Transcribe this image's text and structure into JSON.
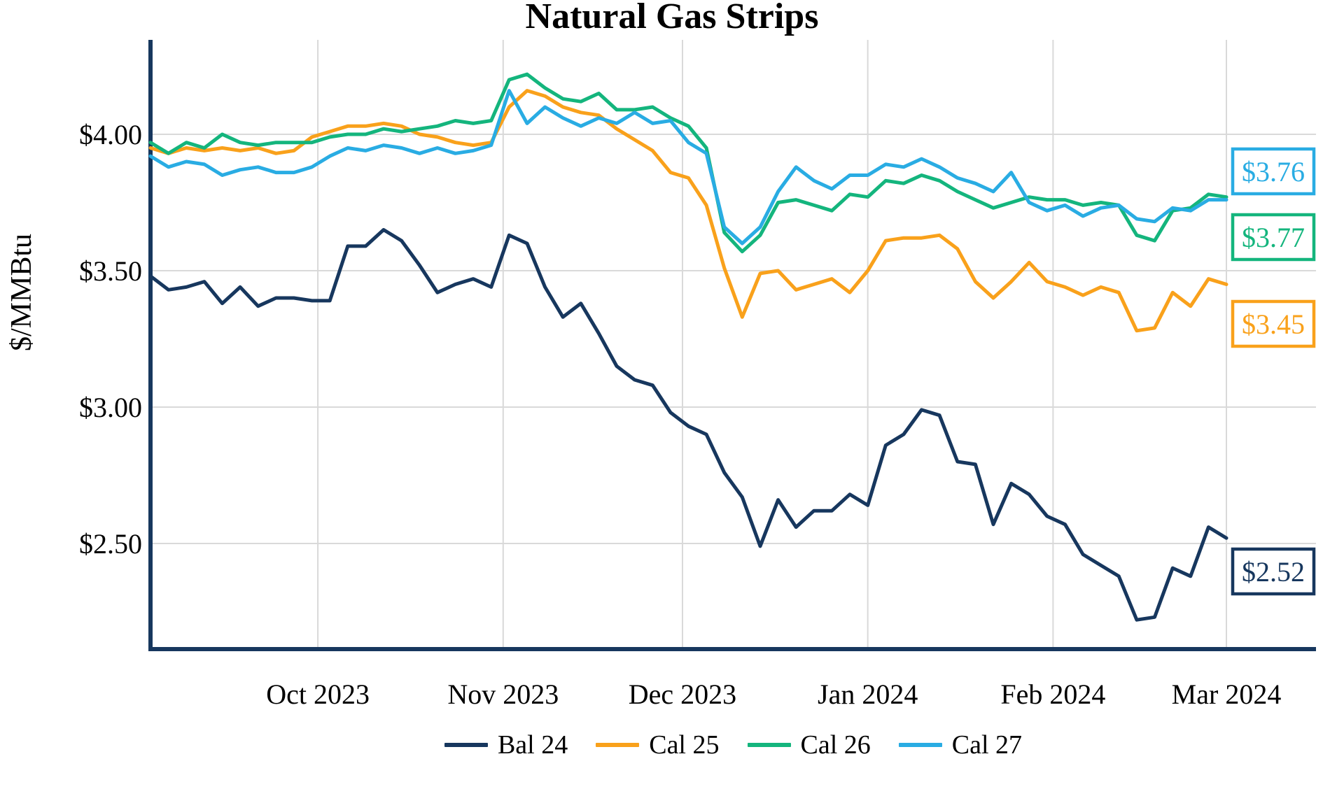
{
  "chart_data": {
    "type": "line",
    "title": "Natural Gas Strips",
    "ylabel": "$/MMBtu",
    "grid": true,
    "legend_position": "bottom",
    "x_unit": "date",
    "x_start": "2023-09-03",
    "x_end": "2024-03-01",
    "x_tick_labels": [
      "Oct 2023",
      "Nov 2023",
      "Dec 2023",
      "Jan 2024",
      "Feb 2024",
      "Mar 2024"
    ],
    "x_tick_day_offsets": [
      28,
      59,
      89,
      120,
      151,
      180
    ],
    "y_tick_labels": [
      "$4.00",
      "$3.50",
      "$3.00",
      "$2.50"
    ],
    "y_tick_values": [
      4.0,
      3.5,
      3.0,
      2.5
    ],
    "ylim": [
      2.11,
      4.35
    ],
    "day_offsets": [
      0,
      3,
      6,
      9,
      12,
      15,
      18,
      21,
      24,
      27,
      30,
      33,
      36,
      39,
      42,
      45,
      48,
      51,
      54,
      57,
      60,
      63,
      66,
      69,
      72,
      75,
      78,
      81,
      84,
      87,
      90,
      93,
      96,
      99,
      102,
      105,
      108,
      111,
      114,
      117,
      120,
      123,
      126,
      129,
      132,
      135,
      138,
      141,
      144,
      147,
      150,
      153,
      156,
      159,
      162,
      165,
      168,
      171,
      174,
      177,
      180
    ],
    "series": [
      {
        "name": "Bal 24",
        "color": "#17375E",
        "end_label": "$2.52",
        "end_value": 2.52,
        "values": [
          3.48,
          3.43,
          3.44,
          3.46,
          3.38,
          3.44,
          3.37,
          3.4,
          3.4,
          3.39,
          3.39,
          3.59,
          3.59,
          3.65,
          3.61,
          3.52,
          3.42,
          3.45,
          3.47,
          3.44,
          3.63,
          3.6,
          3.44,
          3.33,
          3.38,
          3.27,
          3.15,
          3.1,
          3.08,
          2.98,
          2.93,
          2.9,
          2.76,
          2.67,
          2.49,
          2.66,
          2.56,
          2.62,
          2.62,
          2.68,
          2.64,
          2.86,
          2.9,
          2.99,
          2.97,
          2.8,
          2.79,
          2.57,
          2.72,
          2.68,
          2.6,
          2.57,
          2.46,
          2.42,
          2.38,
          2.22,
          2.23,
          2.41,
          2.38,
          2.56,
          2.52
        ]
      },
      {
        "name": "Cal 25",
        "color": "#F9A11B",
        "end_label": "$3.45",
        "end_value": 3.45,
        "values": [
          3.95,
          3.93,
          3.95,
          3.94,
          3.95,
          3.94,
          3.95,
          3.93,
          3.94,
          3.99,
          4.01,
          4.03,
          4.03,
          4.04,
          4.03,
          4.0,
          3.99,
          3.97,
          3.96,
          3.97,
          4.1,
          4.16,
          4.14,
          4.1,
          4.08,
          4.07,
          4.02,
          3.98,
          3.94,
          3.86,
          3.84,
          3.74,
          3.51,
          3.33,
          3.49,
          3.5,
          3.43,
          3.45,
          3.47,
          3.42,
          3.5,
          3.61,
          3.62,
          3.62,
          3.63,
          3.58,
          3.46,
          3.4,
          3.46,
          3.53,
          3.46,
          3.44,
          3.41,
          3.44,
          3.42,
          3.28,
          3.29,
          3.42,
          3.37,
          3.47,
          3.45
        ]
      },
      {
        "name": "Cal 26",
        "color": "#14B57D",
        "end_label": "$3.77",
        "end_value": 3.77,
        "values": [
          3.97,
          3.93,
          3.97,
          3.95,
          4.0,
          3.97,
          3.96,
          3.97,
          3.97,
          3.97,
          3.99,
          4.0,
          4.0,
          4.02,
          4.01,
          4.02,
          4.03,
          4.05,
          4.04,
          4.05,
          4.2,
          4.22,
          4.17,
          4.13,
          4.12,
          4.15,
          4.09,
          4.09,
          4.1,
          4.06,
          4.03,
          3.95,
          3.64,
          3.57,
          3.63,
          3.75,
          3.76,
          3.74,
          3.72,
          3.78,
          3.77,
          3.83,
          3.82,
          3.85,
          3.83,
          3.79,
          3.76,
          3.73,
          3.75,
          3.77,
          3.76,
          3.76,
          3.74,
          3.75,
          3.74,
          3.63,
          3.61,
          3.72,
          3.73,
          3.78,
          3.77
        ]
      },
      {
        "name": "Cal 27",
        "color": "#29ACE3",
        "end_label": "$3.76",
        "end_value": 3.76,
        "values": [
          3.92,
          3.88,
          3.9,
          3.89,
          3.85,
          3.87,
          3.88,
          3.86,
          3.86,
          3.88,
          3.92,
          3.95,
          3.94,
          3.96,
          3.95,
          3.93,
          3.95,
          3.93,
          3.94,
          3.96,
          4.16,
          4.04,
          4.1,
          4.06,
          4.03,
          4.06,
          4.04,
          4.08,
          4.04,
          4.05,
          3.97,
          3.93,
          3.66,
          3.6,
          3.66,
          3.79,
          3.88,
          3.83,
          3.8,
          3.85,
          3.85,
          3.89,
          3.88,
          3.91,
          3.88,
          3.84,
          3.82,
          3.79,
          3.86,
          3.75,
          3.72,
          3.74,
          3.7,
          3.73,
          3.74,
          3.69,
          3.68,
          3.73,
          3.72,
          3.76,
          3.76
        ]
      }
    ]
  },
  "style_colors": {
    "axis": "#17375E",
    "gridline": "#D9D9D9",
    "text": "#000000",
    "background": "#FFFFFF"
  }
}
